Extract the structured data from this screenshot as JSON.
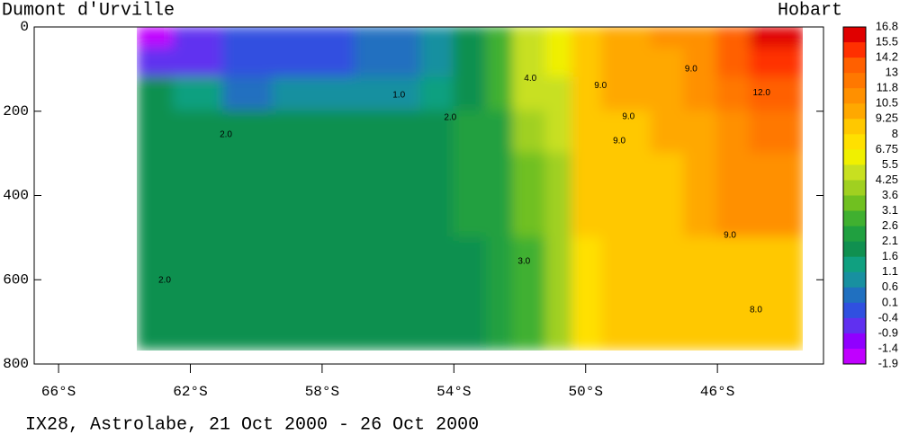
{
  "chart_data": {
    "type": "heatmap",
    "left_label": "Dumont d'Urville",
    "right_label": "Hobart",
    "caption": "IX28, Astrolabe, 21 Oct 2000 - 26 Oct 2000",
    "xlim": [
      66.74,
      42.78
    ],
    "ylim": [
      800,
      0
    ],
    "xticks": [
      {
        "value": 66,
        "label": "66°S"
      },
      {
        "value": 62,
        "label": "62°S"
      },
      {
        "value": 58,
        "label": "58°S"
      },
      {
        "value": 54,
        "label": "54°S"
      },
      {
        "value": 50,
        "label": "50°S"
      },
      {
        "value": 46,
        "label": "46°S"
      }
    ],
    "yticks": [
      0,
      200,
      400,
      600,
      800
    ],
    "heatmap": {
      "x_edges": [
        63.6,
        62.5,
        61,
        59.5,
        57,
        55,
        54,
        53,
        52.2,
        51.2,
        50.4,
        49.5,
        48,
        47,
        46,
        45,
        43.4
      ],
      "depth_edges": [
        0,
        50,
        120,
        200,
        300,
        500,
        765
      ],
      "values": [
        [
          -1.5,
          -0.7,
          -0.3,
          -0.3,
          0.3,
          1.0,
          2.0,
          3.0,
          4.5,
          5.5,
          8.5,
          9.8,
          10.5,
          11.5,
          13.5,
          15.5
        ],
        [
          -0.5,
          -0.5,
          -0.3,
          -0.2,
          0.2,
          1.0,
          1.8,
          2.8,
          4.5,
          5.5,
          8.5,
          9.5,
          10.2,
          11.0,
          13.0,
          14.5
        ],
        [
          1.6,
          1.5,
          0.5,
          0.6,
          0.7,
          1.2,
          2.0,
          2.6,
          4.3,
          5.0,
          8.5,
          9.3,
          9.8,
          10.5,
          12.5,
          13.5
        ],
        [
          1.9,
          1.9,
          1.8,
          2.0,
          2.0,
          2.0,
          2.2,
          2.5,
          4.0,
          4.8,
          8.3,
          9.0,
          9.3,
          10.0,
          11.5,
          12.5
        ],
        [
          2.0,
          2.0,
          2.0,
          2.0,
          2.0,
          2.0,
          2.1,
          2.4,
          3.5,
          4.2,
          8.0,
          8.8,
          9.0,
          9.5,
          10.5,
          11.0
        ],
        [
          1.9,
          1.9,
          1.8,
          1.8,
          1.8,
          1.9,
          2.0,
          2.2,
          3.0,
          3.6,
          7.5,
          8.2,
          8.5,
          8.6,
          8.8,
          9.0
        ]
      ]
    },
    "colorbar": {
      "levels": [
        16.8,
        15.5,
        14.2,
        13,
        11.8,
        10.5,
        9.25,
        8,
        6.75,
        5.5,
        4.25,
        3.6,
        3.1,
        2.6,
        2.1,
        1.6,
        1.1,
        0.6,
        0.1,
        -0.4,
        -0.9,
        -1.4,
        -1.9
      ],
      "colors": [
        "#e00000",
        "#ff3000",
        "#ff6000",
        "#ff7800",
        "#ff9000",
        "#ffa800",
        "#ffc800",
        "#ffe000",
        "#f0f000",
        "#c8e020",
        "#a0d020",
        "#70c020",
        "#40b030",
        "#20a040",
        "#109050",
        "#10a080",
        "#1890a0",
        "#2070c0",
        "#3050e0",
        "#6030f0",
        "#9000ff",
        "#c000ff"
      ]
    },
    "contour_labels": [
      {
        "text": "1.0",
        "x": 55.67,
        "y": 162
      },
      {
        "text": "2.0",
        "x": 60.92,
        "y": 256
      },
      {
        "text": "2.0",
        "x": 54.11,
        "y": 215
      },
      {
        "text": "4.0",
        "x": 51.68,
        "y": 122
      },
      {
        "text": "9.0",
        "x": 49.55,
        "y": 139
      },
      {
        "text": "9.0",
        "x": 46.8,
        "y": 100
      },
      {
        "text": "12.0",
        "x": 44.66,
        "y": 156
      },
      {
        "text": "9.0",
        "x": 48.7,
        "y": 213
      },
      {
        "text": "9.0",
        "x": 48.98,
        "y": 271
      },
      {
        "text": "9.0",
        "x": 45.62,
        "y": 495
      },
      {
        "text": "3.0",
        "x": 51.87,
        "y": 557
      },
      {
        "text": "8.0",
        "x": 44.83,
        "y": 672
      },
      {
        "text": "2.0",
        "x": 62.78,
        "y": 601
      }
    ]
  }
}
